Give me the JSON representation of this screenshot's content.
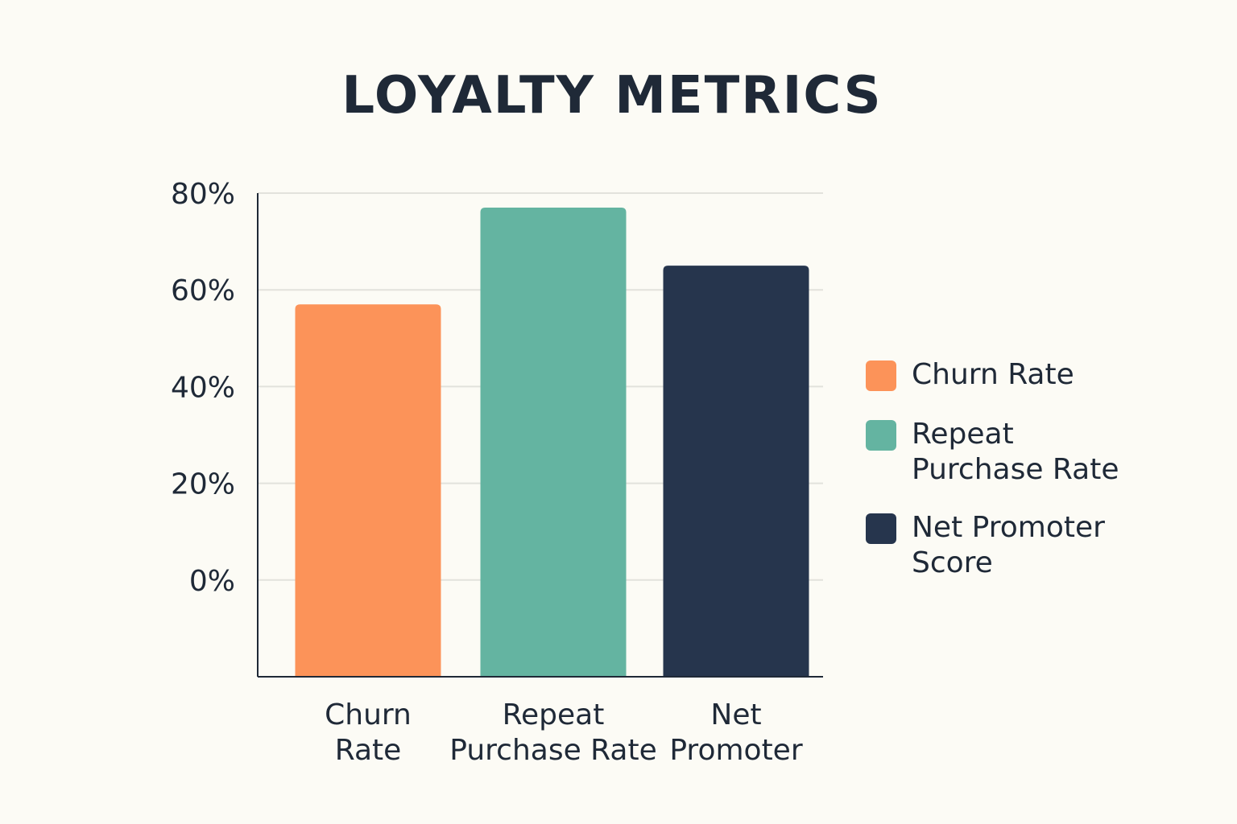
{
  "chart_data": {
    "type": "bar",
    "title": "LOYALTY METRICS",
    "categories": [
      "Churn\nRate",
      "Repeat\nPurchase Rate",
      "Net\nPromoter"
    ],
    "values": [
      57,
      77,
      65
    ],
    "ylim": [
      -20,
      80
    ],
    "yticks": [
      0,
      20,
      40,
      60,
      80
    ],
    "ytick_labels": [
      "0%",
      "20%",
      "40%",
      "60%",
      "80%"
    ],
    "xlabel": "",
    "ylabel": "",
    "grid": true,
    "legend_position": "right",
    "legend": [
      {
        "label": "Churn Rate",
        "color": "#fc9359"
      },
      {
        "label": "Repeat\nPurchase Rate",
        "color": "#64b4a1"
      },
      {
        "label": "Net Promoter\nScore",
        "color": "#26354d"
      }
    ],
    "colors": [
      "#fc9359",
      "#64b4a1",
      "#26354d"
    ]
  }
}
